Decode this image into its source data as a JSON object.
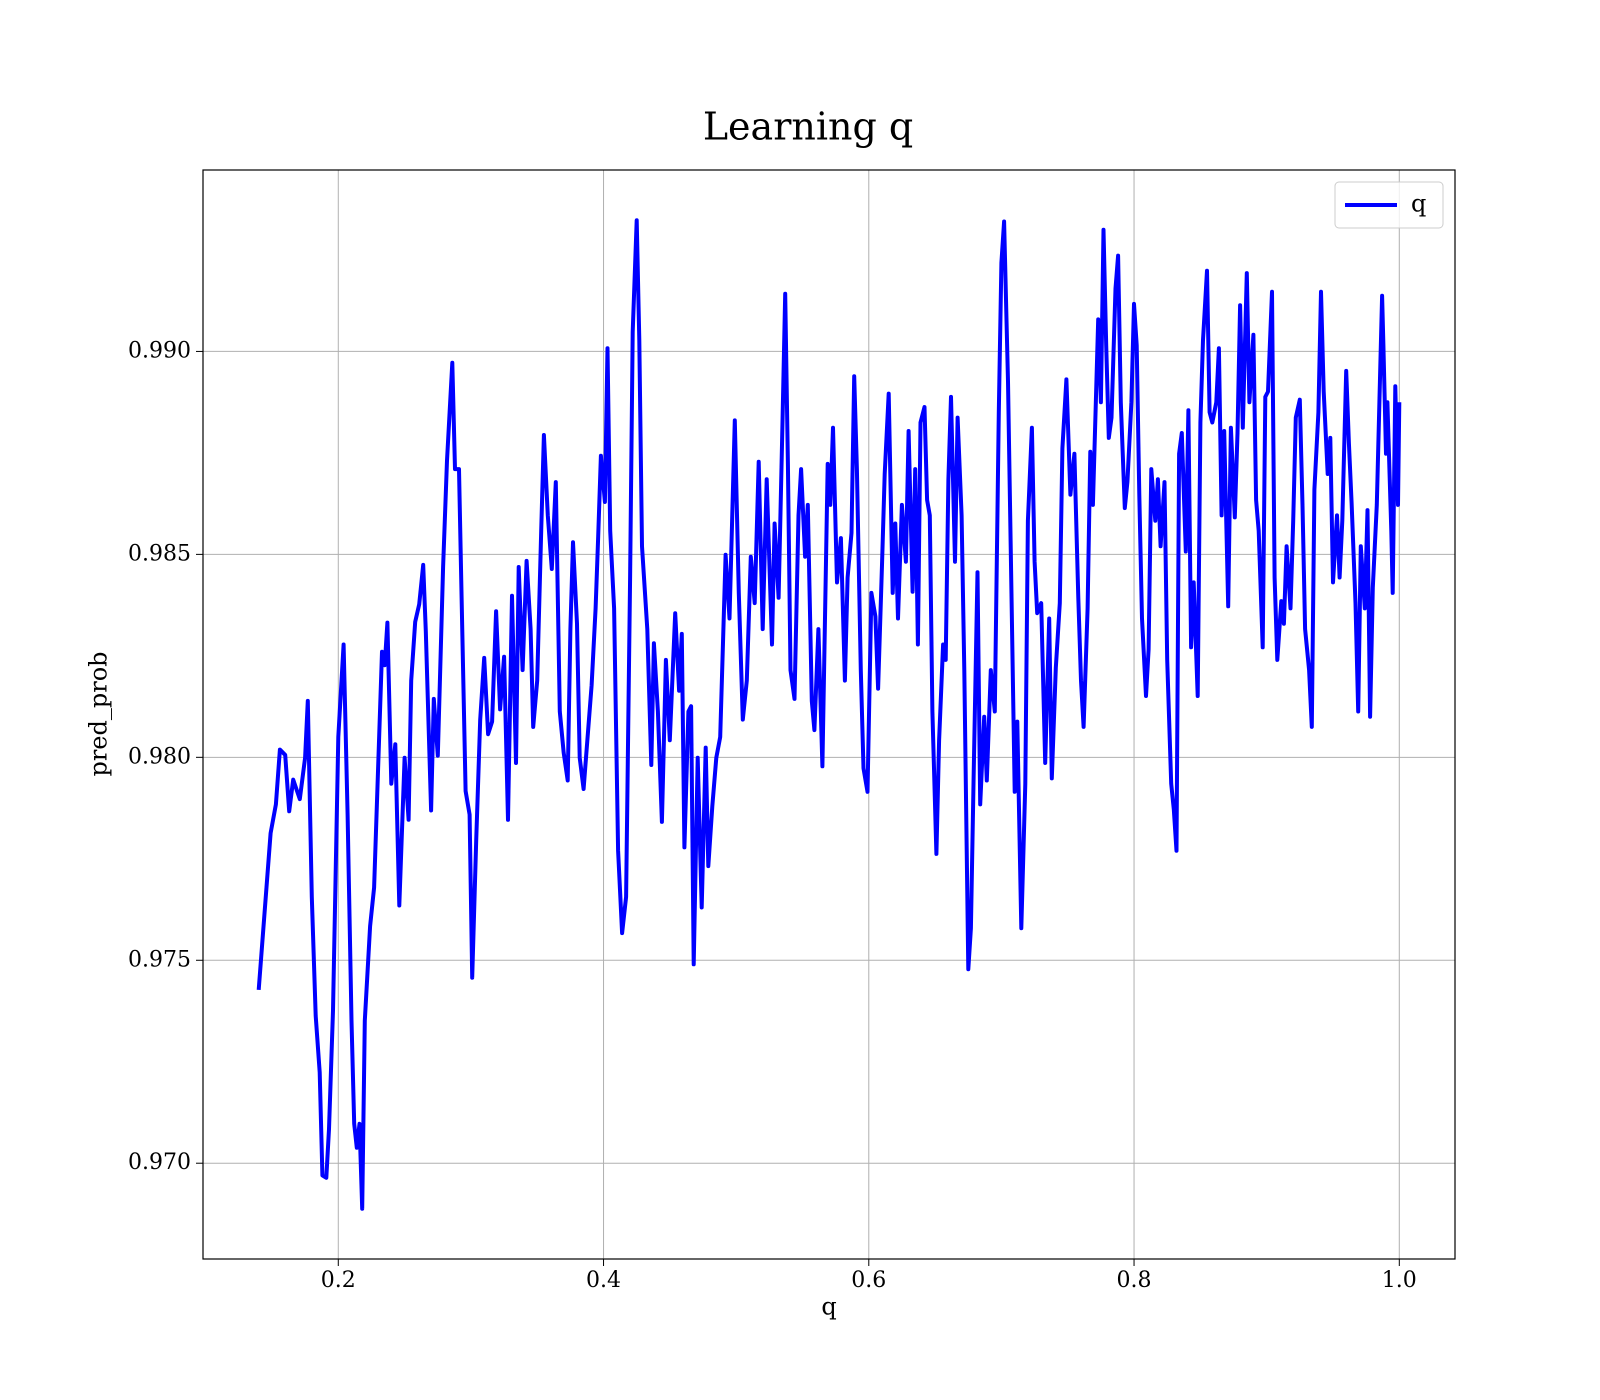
{
  "chart_data": {
    "type": "line",
    "title": "Learning q",
    "xlabel": "q",
    "ylabel": "pred_prob",
    "x": [
      0.14,
      0.149,
      0.153,
      0.156,
      0.16,
      0.163,
      0.166,
      0.171,
      0.175,
      0.177,
      0.18,
      0.183,
      0.186,
      0.188,
      0.191,
      0.193,
      0.196,
      0.2,
      0.204,
      0.207,
      0.21,
      0.212,
      0.214,
      0.216,
      0.218,
      0.22,
      0.224,
      0.227,
      0.23,
      0.233,
      0.235,
      0.237,
      0.24,
      0.243,
      0.246,
      0.25,
      0.253,
      0.255,
      0.258,
      0.261,
      0.264,
      0.266,
      0.27,
      0.272,
      0.275,
      0.279,
      0.282,
      0.286,
      0.288,
      0.291,
      0.293,
      0.296,
      0.299,
      0.301,
      0.304,
      0.307,
      0.31,
      0.313,
      0.316,
      0.319,
      0.322,
      0.325,
      0.328,
      0.331,
      0.334,
      0.336,
      0.339,
      0.342,
      0.345,
      0.347,
      0.35,
      0.353,
      0.355,
      0.358,
      0.361,
      0.364,
      0.367,
      0.37,
      0.373,
      0.375,
      0.377,
      0.38,
      0.382,
      0.385,
      0.388,
      0.391,
      0.394,
      0.396,
      0.398,
      0.401,
      0.403,
      0.405,
      0.408,
      0.411,
      0.414,
      0.417,
      0.42,
      0.422,
      0.425,
      0.427,
      0.429,
      0.433,
      0.436,
      0.438,
      0.441,
      0.444,
      0.447,
      0.45,
      0.454,
      0.457,
      0.459,
      0.461,
      0.464,
      0.466,
      0.468,
      0.471,
      0.474,
      0.477,
      0.479,
      0.482,
      0.485,
      0.488,
      0.492,
      0.495,
      0.499,
      0.502,
      0.505,
      0.508,
      0.511,
      0.514,
      0.517,
      0.52,
      0.523,
      0.527,
      0.529,
      0.532,
      0.535,
      0.537,
      0.539,
      0.541,
      0.544,
      0.547,
      0.549,
      0.552,
      0.554,
      0.557,
      0.559,
      0.562,
      0.565,
      0.569,
      0.571,
      0.573,
      0.576,
      0.579,
      0.582,
      0.584,
      0.587,
      0.589,
      0.591,
      0.594,
      0.596,
      0.599,
      0.602,
      0.605,
      0.607,
      0.61,
      0.612,
      0.615,
      0.618,
      0.62,
      0.622,
      0.625,
      0.628,
      0.63,
      0.633,
      0.635,
      0.637,
      0.639,
      0.642,
      0.644,
      0.646,
      0.648,
      0.651,
      0.653,
      0.656,
      0.658,
      0.66,
      0.662,
      0.665,
      0.667,
      0.67,
      0.672,
      0.675,
      0.677,
      0.679,
      0.682,
      0.684,
      0.687,
      0.689,
      0.692,
      0.695,
      0.698,
      0.7,
      0.702,
      0.705,
      0.707,
      0.71,
      0.712,
      0.715,
      0.718,
      0.72,
      0.723,
      0.725,
      0.727,
      0.73,
      0.733,
      0.736,
      0.738,
      0.741,
      0.744,
      0.746,
      0.749,
      0.752,
      0.755,
      0.758,
      0.76,
      0.762,
      0.765,
      0.767,
      0.769,
      0.773,
      0.775,
      0.777,
      0.779,
      0.781,
      0.783,
      0.786,
      0.788,
      0.79,
      0.793,
      0.795,
      0.798,
      0.8,
      0.802,
      0.804,
      0.806,
      0.809,
      0.811,
      0.813,
      0.816,
      0.818,
      0.82,
      0.823,
      0.825,
      0.828,
      0.83,
      0.832,
      0.834,
      0.836,
      0.839,
      0.841,
      0.843,
      0.845,
      0.848,
      0.85,
      0.852,
      0.855,
      0.857,
      0.859,
      0.862,
      0.864,
      0.866,
      0.868,
      0.871,
      0.873,
      0.876,
      0.878,
      0.88,
      0.882,
      0.885,
      0.887,
      0.89,
      0.892,
      0.894,
      0.897,
      0.899,
      0.901,
      0.904,
      0.906,
      0.908,
      0.911,
      0.913,
      0.915,
      0.918,
      0.92,
      0.922,
      0.925,
      0.927,
      0.929,
      0.932,
      0.934,
      0.936,
      0.939,
      0.941,
      0.943,
      0.946,
      0.948,
      0.95,
      0.953,
      0.955,
      0.957,
      0.96,
      0.962,
      0.964,
      0.967,
      0.969,
      0.971,
      0.974,
      0.976,
      0.978,
      0.98,
      0.983,
      0.985,
      0.987,
      0.988,
      0.99,
      0.991,
      0.994,
      0.995,
      0.997,
      0.999,
      1.0
    ],
    "series": [
      {
        "name": "q",
        "color": "#0000ff",
        "values": [
          0.97427,
          0.97813,
          0.97884,
          0.98019,
          0.98006,
          0.97867,
          0.97945,
          0.97897,
          0.97999,
          0.98139,
          0.97656,
          0.97363,
          0.97224,
          0.9697,
          0.96964,
          0.97084,
          0.97376,
          0.9805,
          0.98278,
          0.97859,
          0.97351,
          0.97097,
          0.97038,
          0.97097,
          0.96888,
          0.97351,
          0.97584,
          0.97679,
          0.97973,
          0.9826,
          0.98227,
          0.98332,
          0.97935,
          0.98032,
          0.97635,
          0.97999,
          0.97846,
          0.98189,
          0.98334,
          0.98377,
          0.98474,
          0.98311,
          0.97869,
          0.98144,
          0.98004,
          0.98469,
          0.98731,
          0.98972,
          0.9871,
          0.9871,
          0.98393,
          0.97917,
          0.97859,
          0.97457,
          0.97795,
          0.98093,
          0.98245,
          0.98057,
          0.98088,
          0.9836,
          0.98118,
          0.98248,
          0.97846,
          0.98398,
          0.97986,
          0.98469,
          0.98215,
          0.98484,
          0.98316,
          0.98075,
          0.98189,
          0.98558,
          0.98794,
          0.98596,
          0.98464,
          0.98678,
          0.98113,
          0.98011,
          0.97943,
          0.98316,
          0.9853,
          0.98329,
          0.97999,
          0.97922,
          0.9805,
          0.98177,
          0.98367,
          0.98545,
          0.98743,
          0.98629,
          0.99008,
          0.98558,
          0.98367,
          0.9777,
          0.97567,
          0.97656,
          0.98443,
          0.99048,
          0.99323,
          0.99028,
          0.9852,
          0.98316,
          0.97981,
          0.98281,
          0.98113,
          0.97841,
          0.9824,
          0.98042,
          0.98355,
          0.98164,
          0.98304,
          0.97778,
          0.98113,
          0.98126,
          0.9749,
          0.97999,
          0.9763,
          0.98024,
          0.97732,
          0.97879,
          0.97999,
          0.9805,
          0.98499,
          0.98342,
          0.9883,
          0.98405,
          0.98093,
          0.98189,
          0.98494,
          0.9838,
          0.98728,
          0.98316,
          0.98685,
          0.98278,
          0.98576,
          0.98393,
          0.98837,
          0.99142,
          0.98723,
          0.98215,
          0.98144,
          0.98596,
          0.9871,
          0.98494,
          0.98622,
          0.98139,
          0.98067,
          0.98316,
          0.97978,
          0.98723,
          0.98622,
          0.98812,
          0.98431,
          0.9854,
          0.98189,
          0.98443,
          0.98553,
          0.98939,
          0.9871,
          0.98215,
          0.97973,
          0.97915,
          0.98405,
          0.98347,
          0.98169,
          0.98482,
          0.98698,
          0.98896,
          0.98405,
          0.98576,
          0.98342,
          0.98622,
          0.98482,
          0.98804,
          0.98408,
          0.9871,
          0.98278,
          0.98825,
          0.98863,
          0.98634,
          0.98596,
          0.98113,
          0.97762,
          0.98042,
          0.98278,
          0.9824,
          0.98685,
          0.98888,
          0.98482,
          0.98837,
          0.98596,
          0.98215,
          0.97478,
          0.97579,
          0.97948,
          0.98456,
          0.97884,
          0.981,
          0.97943,
          0.98215,
          0.98113,
          0.9885,
          0.99218,
          0.9932,
          0.98926,
          0.9852,
          0.97915,
          0.98088,
          0.97579,
          0.97935,
          0.98583,
          0.98812,
          0.98482,
          0.98355,
          0.9838,
          0.97986,
          0.98342,
          0.97948,
          0.9822,
          0.9838,
          0.98761,
          0.98931,
          0.98647,
          0.98748,
          0.98393,
          0.98189,
          0.98075,
          0.98367,
          0.98753,
          0.98622,
          0.99079,
          0.98875,
          0.993,
          0.99015,
          0.98787,
          0.98837,
          0.99155,
          0.99236,
          0.98875,
          0.98614,
          0.98678,
          0.98875,
          0.99117,
          0.99015,
          0.98647,
          0.98342,
          0.98151,
          0.98266,
          0.9871,
          0.98583,
          0.98685,
          0.9852,
          0.98678,
          0.9824,
          0.97935,
          0.97872,
          0.9777,
          0.98748,
          0.98799,
          0.98507,
          0.98855,
          0.98271,
          0.98431,
          0.98151,
          0.98825,
          0.99028,
          0.99199,
          0.9885,
          0.98825,
          0.98875,
          0.99008,
          0.98596,
          0.98804,
          0.98372,
          0.98812,
          0.98591,
          0.98799,
          0.99114,
          0.98812,
          0.99193,
          0.98875,
          0.99041,
          0.98634,
          0.98558,
          0.98271,
          0.98888,
          0.98901,
          0.99147,
          0.98443,
          0.9824,
          0.98385,
          0.98329,
          0.9852,
          0.98367,
          0.98583,
          0.98837,
          0.98881,
          0.98622,
          0.98316,
          0.98215,
          0.98075,
          0.9866,
          0.9885,
          0.99147,
          0.98901,
          0.98698,
          0.98787,
          0.98431,
          0.98596,
          0.98443,
          0.98583,
          0.98952,
          0.98774,
          0.98627,
          0.9838,
          0.98113,
          0.9852,
          0.98367,
          0.98609,
          0.981,
          0.98418,
          0.98622,
          0.98875,
          0.99137,
          0.99015,
          0.98748,
          0.98875,
          0.98558,
          0.98405,
          0.98914,
          0.98622,
          0.98875
        ]
      }
    ],
    "xlim": [
      0.098,
      1.042
    ],
    "ylim": [
      0.96764,
      0.99447
    ],
    "xticks": [
      0.2,
      0.4,
      0.6,
      0.8,
      {
        "value": 1,
        "label": "1.0"
      }
    ],
    "yticks": [
      {
        "value": 0.97,
        "label": "0.970"
      },
      {
        "value": 0.975,
        "label": "0.975"
      },
      {
        "value": 0.98,
        "label": "0.980"
      },
      {
        "value": 0.985,
        "label": "0.985"
      },
      {
        "value": 0.99,
        "label": "0.990"
      }
    ],
    "grid": true,
    "legend": "upper right"
  }
}
